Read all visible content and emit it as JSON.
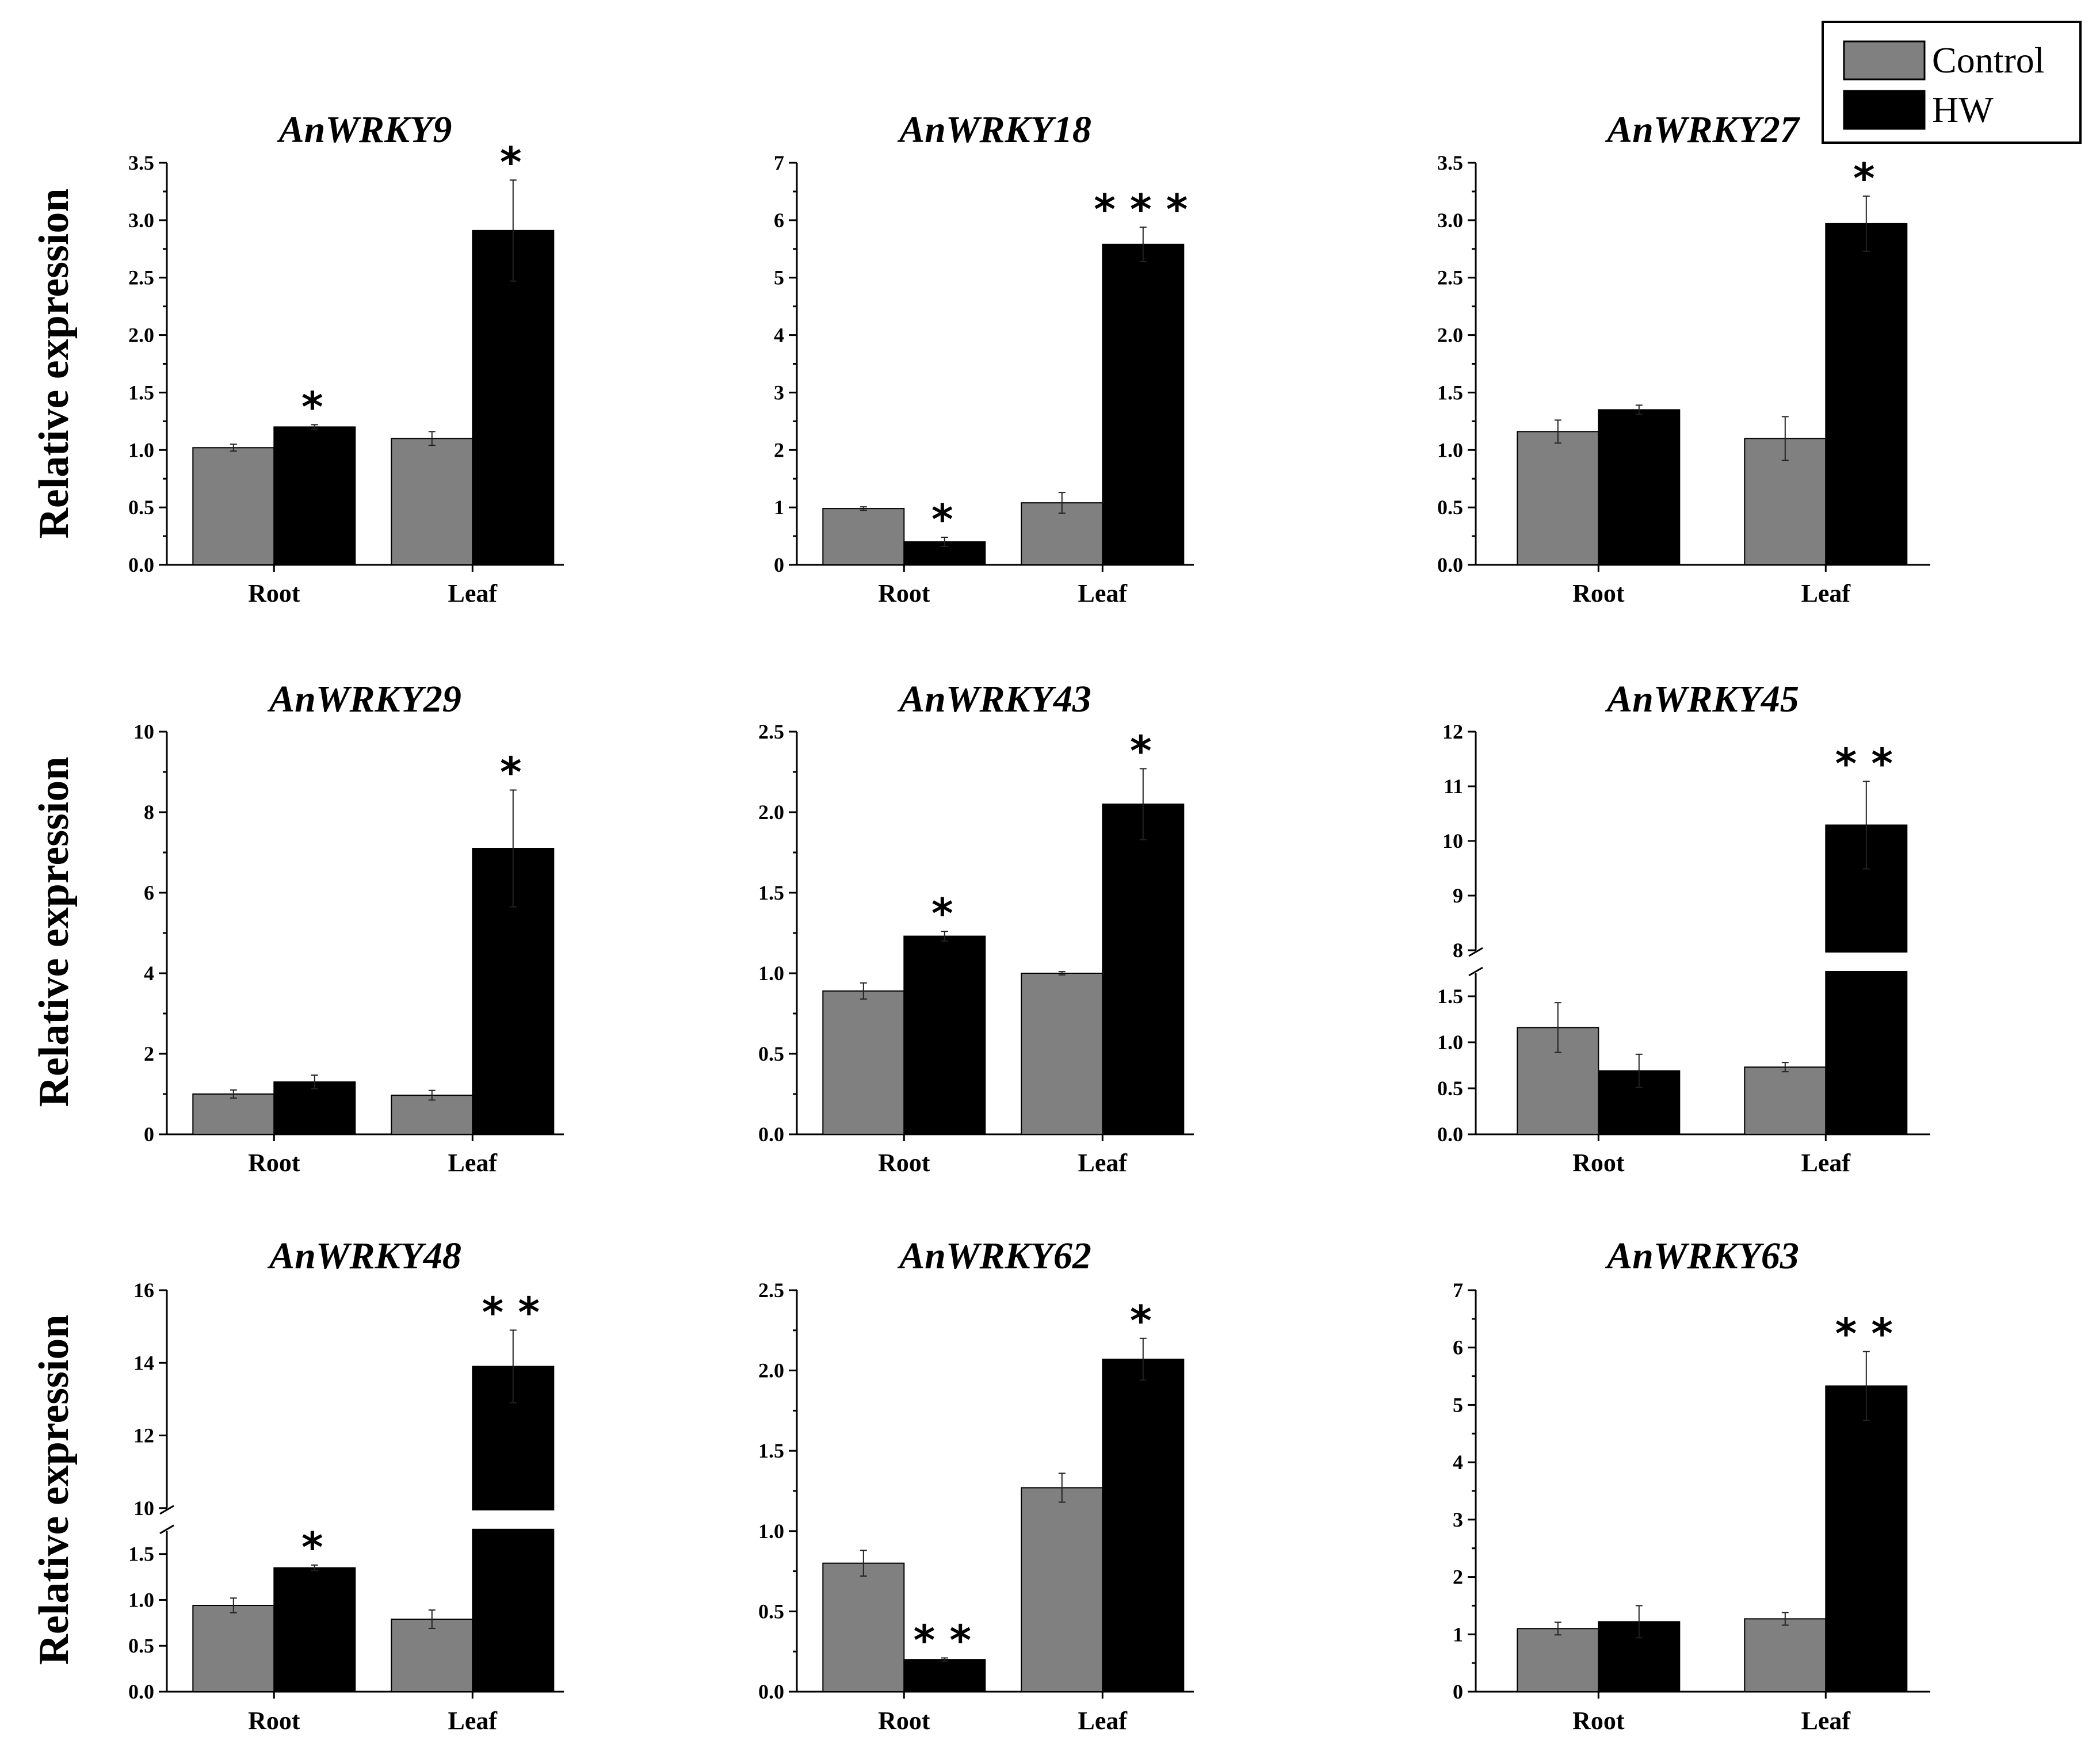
{
  "figure": {
    "y_axis_label": "Relative expression",
    "legend": [
      {
        "label": "Control",
        "color": "#808080"
      },
      {
        "label": "HW",
        "color": "#000000"
      }
    ],
    "colors": {
      "control": "#808080",
      "hw": "#000000",
      "axis": "#000000"
    }
  },
  "chart_data": [
    {
      "type": "bar",
      "title": "AnWRKY9",
      "categories": [
        "Root",
        "Leaf"
      ],
      "series": [
        {
          "name": "Control",
          "values": [
            1.02,
            1.1
          ],
          "errors": [
            0.03,
            0.06
          ]
        },
        {
          "name": "HW",
          "values": [
            1.2,
            2.91
          ],
          "errors": [
            0.02,
            0.44
          ]
        }
      ],
      "significance": {
        "HW": [
          "*",
          "*"
        ]
      },
      "ylim": [
        0,
        3.5
      ],
      "yticks": [
        "0.0",
        "0.5",
        "1.0",
        "1.5",
        "2.0",
        "2.5",
        "3.0",
        "3.5"
      ]
    },
    {
      "type": "bar",
      "title": "AnWRKY18",
      "categories": [
        "Root",
        "Leaf"
      ],
      "series": [
        {
          "name": "Control",
          "values": [
            0.98,
            1.08
          ],
          "errors": [
            0.03,
            0.18
          ]
        },
        {
          "name": "HW",
          "values": [
            0.4,
            5.58
          ],
          "errors": [
            0.08,
            0.3
          ]
        }
      ],
      "significance": {
        "HW": [
          "*",
          "***"
        ]
      },
      "ylim": [
        0,
        7
      ],
      "yticks": [
        "0",
        "1",
        "2",
        "3",
        "4",
        "5",
        "6",
        "7"
      ]
    },
    {
      "type": "bar",
      "title": "AnWRKY27",
      "categories": [
        "Root",
        "Leaf"
      ],
      "series": [
        {
          "name": "Control",
          "values": [
            1.16,
            1.1
          ],
          "errors": [
            0.1,
            0.19
          ]
        },
        {
          "name": "HW",
          "values": [
            1.35,
            2.97
          ],
          "errors": [
            0.04,
            0.24
          ]
        }
      ],
      "significance": {
        "HW": [
          "",
          "*"
        ]
      },
      "ylim": [
        0,
        3.5
      ],
      "yticks": [
        "0.0",
        "0.5",
        "1.0",
        "1.5",
        "2.0",
        "2.5",
        "3.0",
        "3.5"
      ]
    },
    {
      "type": "bar",
      "title": "AnWRKY29",
      "categories": [
        "Root",
        "Leaf"
      ],
      "series": [
        {
          "name": "Control",
          "values": [
            1.0,
            0.97
          ],
          "errors": [
            0.1,
            0.12
          ]
        },
        {
          "name": "HW",
          "values": [
            1.3,
            7.1
          ],
          "errors": [
            0.17,
            1.45
          ]
        }
      ],
      "significance": {
        "HW": [
          "",
          "*"
        ]
      },
      "ylim": [
        0,
        10
      ],
      "yticks": [
        "0",
        "2",
        "4",
        "6",
        "8",
        "10"
      ]
    },
    {
      "type": "bar",
      "title": "AnWRKY43",
      "categories": [
        "Root",
        "Leaf"
      ],
      "series": [
        {
          "name": "Control",
          "values": [
            0.89,
            1.0
          ],
          "errors": [
            0.05,
            0.01
          ]
        },
        {
          "name": "HW",
          "values": [
            1.23,
            2.05
          ],
          "errors": [
            0.03,
            0.22
          ]
        }
      ],
      "significance": {
        "HW": [
          "*",
          "*"
        ]
      },
      "ylim": [
        0,
        2.5
      ],
      "yticks": [
        "0.0",
        "0.5",
        "1.0",
        "1.5",
        "2.0",
        "2.5"
      ]
    },
    {
      "type": "bar",
      "title": "AnWRKY45",
      "categories": [
        "Root",
        "Leaf"
      ],
      "series": [
        {
          "name": "Control",
          "values": [
            1.16,
            0.73
          ],
          "errors": [
            0.27,
            0.05
          ]
        },
        {
          "name": "HW",
          "values": [
            0.69,
            10.29
          ],
          "errors": [
            0.18,
            0.8
          ]
        }
      ],
      "significance": {
        "HW": [
          "",
          "**"
        ]
      },
      "broken_axis": {
        "lower": [
          0,
          1.75
        ],
        "upper": [
          8,
          12
        ]
      },
      "yticks_lower": [
        "0.0",
        "0.5",
        "1.0",
        "1.5"
      ],
      "yticks_upper": [
        "8",
        "9",
        "10",
        "11",
        "12"
      ]
    },
    {
      "type": "bar",
      "title": "AnWRKY48",
      "categories": [
        "Root",
        "Leaf"
      ],
      "series": [
        {
          "name": "Control",
          "values": [
            0.94,
            0.79
          ],
          "errors": [
            0.08,
            0.1
          ]
        },
        {
          "name": "HW",
          "values": [
            1.35,
            13.9
          ],
          "errors": [
            0.03,
            1.0
          ]
        }
      ],
      "significance": {
        "HW": [
          "*",
          "**"
        ]
      },
      "broken_axis": {
        "lower": [
          0,
          1.75
        ],
        "upper": [
          10,
          16
        ]
      },
      "yticks_lower": [
        "0.0",
        "0.5",
        "1.0",
        "1.5"
      ],
      "yticks_upper": [
        "10",
        "12",
        "14",
        "16"
      ]
    },
    {
      "type": "bar",
      "title": "AnWRKY62",
      "categories": [
        "Root",
        "Leaf"
      ],
      "series": [
        {
          "name": "Control",
          "values": [
            0.8,
            1.27
          ],
          "errors": [
            0.08,
            0.09
          ]
        },
        {
          "name": "HW",
          "values": [
            0.2,
            2.07
          ],
          "errors": [
            0.01,
            0.13
          ]
        }
      ],
      "significance": {
        "HW": [
          "**",
          "*"
        ]
      },
      "ylim": [
        0,
        2.5
      ],
      "yticks": [
        "0.0",
        "0.5",
        "1.0",
        "1.5",
        "2.0",
        "2.5"
      ]
    },
    {
      "type": "bar",
      "title": "AnWRKY63",
      "categories": [
        "Root",
        "Leaf"
      ],
      "series": [
        {
          "name": "Control",
          "values": [
            1.1,
            1.27
          ],
          "errors": [
            0.11,
            0.11
          ]
        },
        {
          "name": "HW",
          "values": [
            1.22,
            5.33
          ],
          "errors": [
            0.28,
            0.6
          ]
        }
      ],
      "significance": {
        "HW": [
          "",
          "**"
        ]
      },
      "ylim": [
        0,
        7
      ],
      "yticks": [
        "0",
        "1",
        "2",
        "3",
        "4",
        "5",
        "6",
        "7"
      ]
    }
  ]
}
